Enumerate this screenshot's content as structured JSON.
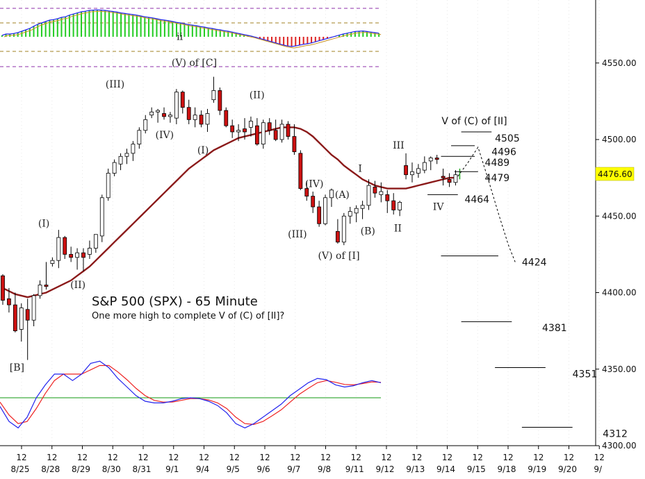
{
  "chart_data": {
    "type": "candlestick",
    "title": "S&P 500 (SPX) - 65 Minute",
    "subtitle": "One more high to complete V of (C) of [II]?",
    "last_price": "4476.60",
    "colors": {
      "up": "#ffffff",
      "down": "#cc1111",
      "ma": "#8b1a1a",
      "last_price_bg": "#ffff00",
      "macd": "#2222ee",
      "signal": "#ee2222",
      "zero": "#119911",
      "hist_up": "#22cc22",
      "hist_down": "#dd2222",
      "guide": "#8e2fa8"
    },
    "y_axis": {
      "min": 4300,
      "max": 4580,
      "ticks": [
        "4300.00",
        "4350.00",
        "4400.00",
        "4450.00",
        "4500.00",
        "4550.00"
      ]
    },
    "x_axis": {
      "sessions": [
        "8/25",
        "8/28",
        "8/29",
        "8/30",
        "8/31",
        "9/1",
        "9/4",
        "9/5",
        "9/6",
        "9/7",
        "9/8",
        "9/11",
        "9/12",
        "9/13",
        "9/14",
        "9/15",
        "9/18",
        "9/19",
        "9/20",
        "9/"
      ],
      "midday_label": "12"
    },
    "candles": [
      [
        4411,
        4412,
        4392,
        4395
      ],
      [
        4396,
        4403,
        4387,
        4392
      ],
      [
        4392,
        4400,
        4374,
        4375
      ],
      [
        4376,
        4393,
        4368,
        4390
      ],
      [
        4389,
        4396,
        4356,
        4382
      ],
      [
        4382,
        4399,
        4378,
        4398
      ],
      [
        4398,
        4408,
        4396,
        4405
      ],
      [
        4405,
        4420,
        4402,
        4404
      ],
      [
        4419,
        4423,
        4417,
        4421
      ],
      [
        4421,
        4441,
        4416,
        4436
      ],
      [
        4436,
        4437,
        4422,
        4425
      ],
      [
        4425,
        4430,
        4420,
        4423
      ],
      [
        4423,
        4429,
        4415,
        4426
      ],
      [
        4426,
        4429,
        4414,
        4423
      ],
      [
        4425,
        4434,
        4422,
        4429
      ],
      [
        4429,
        4438,
        4426,
        4438
      ],
      [
        4437,
        4464,
        4433,
        4462
      ],
      [
        4462,
        4481,
        4460,
        4478
      ],
      [
        4478,
        4487,
        4476,
        4485
      ],
      [
        4484,
        4491,
        4480,
        4489
      ],
      [
        4489,
        4494,
        4484,
        4491
      ],
      [
        4491,
        4499,
        4486,
        4497
      ],
      [
        4497,
        4508,
        4494,
        4506
      ],
      [
        4506,
        4516,
        4504,
        4513
      ],
      [
        4516,
        4521,
        4514,
        4518
      ],
      [
        4518,
        4520,
        4511,
        4519
      ],
      [
        4517,
        4521,
        4513,
        4515
      ],
      [
        4515,
        4518,
        4511,
        4516
      ],
      [
        4514,
        4533,
        4510,
        4531
      ],
      [
        4531,
        4532,
        4517,
        4521
      ],
      [
        4521,
        4526,
        4510,
        4513
      ],
      [
        4513,
        4521,
        4508,
        4516
      ],
      [
        4516,
        4519,
        4508,
        4510
      ],
      [
        4510,
        4520,
        4505,
        4517
      ],
      [
        4526,
        4541,
        4524,
        4532
      ],
      [
        4532,
        4534,
        4516,
        4519
      ],
      [
        4519,
        4521,
        4508,
        4509
      ],
      [
        4509,
        4513,
        4501,
        4505
      ],
      [
        4505,
        4510,
        4499,
        4506
      ],
      [
        4507,
        4514,
        4500,
        4505
      ],
      [
        4508,
        4515,
        4502,
        4512
      ],
      [
        4509,
        4514,
        4496,
        4497
      ],
      [
        4497,
        4513,
        4494,
        4511
      ],
      [
        4511,
        4514,
        4503,
        4506
      ],
      [
        4506,
        4513,
        4499,
        4500
      ],
      [
        4500,
        4513,
        4498,
        4510
      ],
      [
        4510,
        4512,
        4500,
        4502
      ],
      [
        4502,
        4510,
        4490,
        4492
      ],
      [
        4491,
        4493,
        4467,
        4468
      ],
      [
        4468,
        4473,
        4460,
        4463
      ],
      [
        4463,
        4466,
        4452,
        4456
      ],
      [
        4456,
        4460,
        4443,
        4445
      ],
      [
        4445,
        4464,
        4444,
        4462
      ],
      [
        4462,
        4468,
        4456,
        4467
      ],
      [
        4440,
        4448,
        4432,
        4433
      ],
      [
        4433,
        4452,
        4431,
        4450
      ],
      [
        4450,
        4456,
        4445,
        4453
      ],
      [
        4452,
        4457,
        4446,
        4455
      ],
      [
        4455,
        4460,
        4448,
        4457
      ],
      [
        4457,
        4474,
        4454,
        4470
      ],
      [
        4469,
        4473,
        4462,
        4465
      ],
      [
        4464,
        4472,
        4459,
        4466
      ],
      [
        4464,
        4467,
        4452,
        4460
      ],
      [
        4460,
        4465,
        4451,
        4454
      ],
      [
        4454,
        4460,
        4450,
        4459
      ],
      [
        4483,
        4491,
        4474,
        4477
      ],
      [
        4477,
        4485,
        4472,
        4479
      ],
      [
        4478,
        4484,
        4475,
        4481
      ],
      [
        4480,
        4489,
        4478,
        4485
      ],
      [
        4486,
        4489,
        4480,
        4488
      ],
      [
        4488,
        4490,
        4484,
        4487
      ],
      [
        4476,
        4481,
        4470,
        4475
      ],
      [
        4474,
        4478,
        4469,
        4472
      ],
      [
        4472,
        4480,
        4470,
        4477
      ]
    ],
    "moving_average": [
      4403,
      4401,
      4399,
      4398,
      4397,
      4398,
      4399,
      4400,
      4402,
      4404,
      4406,
      4408,
      4411,
      4414,
      4417,
      4421,
      4425,
      4429,
      4433,
      4437,
      4441,
      4445,
      4449,
      4453,
      4457,
      4461,
      4465,
      4469,
      4473,
      4477,
      4481,
      4484,
      4487,
      4490,
      4493,
      4495,
      4497,
      4499,
      4501,
      4502,
      4503,
      4504,
      4505,
      4506,
      4507,
      4508,
      4508,
      4508,
      4507,
      4505,
      4502,
      4498,
      4494,
      4490,
      4487,
      4483,
      4480,
      4477,
      4474,
      4472,
      4470,
      4469,
      4468,
      4468,
      4468,
      4468,
      4469,
      4470,
      4471,
      4472,
      4473,
      4474,
      4475,
      4475
    ],
    "wave_labels": [
      {
        "text": "[B]",
        "i": 4.2,
        "v": 4349
      },
      {
        "text": "(I)",
        "i": 12.2,
        "v": 4443
      },
      {
        "text": "(II)",
        "i": 22.3,
        "v": 4403
      },
      {
        "text": "(III)",
        "i": 33.3,
        "v": 4534
      },
      {
        "text": "(IV)",
        "i": 48,
        "v": 4501
      },
      {
        "text": "ii",
        "i": 52.5,
        "v": 4565
      },
      {
        "text": "(V) of [C]",
        "i": 56.8,
        "v": 4548
      },
      {
        "text": "(I)",
        "i": 59.4,
        "v": 4491
      },
      {
        "text": "(II)",
        "i": 75.4,
        "v": 4527
      },
      {
        "text": "(III)",
        "i": 87.4,
        "v": 4436
      },
      {
        "text": "(IV)",
        "i": 92.4,
        "v": 4469
      },
      {
        "text": "(V) of [I]",
        "i": 99.7,
        "v": 4422
      },
      {
        "text": "(A)",
        "i": 100.7,
        "v": 4462
      },
      {
        "text": "(B)",
        "i": 108.3,
        "v": 4438
      },
      {
        "text": "I",
        "i": 106,
        "v": 4479
      },
      {
        "text": "II",
        "i": 117.2,
        "v": 4440
      },
      {
        "text": "III",
        "i": 117.4,
        "v": 4494
      },
      {
        "text": "IV",
        "i": 129.2,
        "v": 4454
      }
    ],
    "targets": [
      {
        "label": "V of (C) of [II]",
        "kind": "title",
        "i": 139.9,
        "v": 4510
      },
      {
        "label": "4505",
        "i0": 136,
        "i1": 145,
        "v": 4505,
        "ti": 146,
        "tv": 4501
      },
      {
        "label": "4496",
        "i0": 133,
        "i1": 140,
        "v": 4496,
        "ti": 145,
        "tv": 4492
      },
      {
        "label": "4489",
        "i0": 130,
        "i1": 140,
        "v": 4489,
        "ti": 143,
        "tv": 4485
      },
      {
        "label": "4479",
        "i0": 134,
        "i1": 141,
        "v": 4479,
        "ti": 143,
        "tv": 4475
      },
      {
        "label": "4464",
        "i0": 126,
        "i1": 135,
        "v": 4464,
        "ti": 137,
        "tv": 4461
      },
      {
        "label": "4424",
        "i0": 130,
        "i1": 147,
        "v": 4424,
        "ti": 154,
        "tv": 4420
      },
      {
        "label": "4381",
        "i0": 136,
        "i1": 151,
        "v": 4381,
        "ti": 160,
        "tv": 4377
      },
      {
        "label": "4351",
        "i0": 146,
        "i1": 161,
        "v": 4351,
        "ti": 169,
        "tv": 4347
      },
      {
        "label": "4312",
        "i0": 154,
        "i1": 169,
        "v": 4312,
        "ti": 178,
        "tv": 4308
      }
    ],
    "projection": [
      [
        135,
        4476
      ],
      [
        138,
        4485
      ],
      [
        141,
        4495
      ],
      [
        144,
        4474
      ],
      [
        147,
        4452
      ],
      [
        150,
        4431
      ],
      [
        152,
        4420
      ]
    ],
    "histogram": [
      0.05,
      0.1,
      0.1,
      0.12,
      0.15,
      0.2,
      0.25,
      0.3,
      0.38,
      0.45,
      0.5,
      0.55,
      0.6,
      0.62,
      0.65,
      0.7,
      0.72,
      0.78,
      0.82,
      0.86,
      0.9,
      0.92,
      0.95,
      0.96,
      0.97,
      0.96,
      0.95,
      0.93,
      0.91,
      0.89,
      0.86,
      0.84,
      0.82,
      0.8,
      0.78,
      0.75,
      0.72,
      0.7,
      0.68,
      0.65,
      0.62,
      0.6,
      0.58,
      0.55,
      0.52,
      0.5,
      0.47,
      0.44,
      0.42,
      0.4,
      0.37,
      0.35,
      0.32,
      0.3,
      0.27,
      0.25,
      0.22,
      0.2,
      0.17,
      0.14,
      0.11,
      0.08,
      0.05,
      0.02,
      -0.02,
      -0.06,
      -0.1,
      -0.14,
      -0.18,
      -0.22,
      -0.26,
      -0.3,
      -0.33,
      -0.35,
      -0.33,
      -0.3,
      -0.27,
      -0.25,
      -0.22,
      -0.18,
      -0.14,
      -0.1,
      -0.06,
      -0.02,
      0.02,
      0.06,
      0.1,
      0.13,
      0.16,
      0.19,
      0.2,
      0.21,
      0.19,
      0.17,
      0.15,
      0.13
    ],
    "macd": [
      -0.2,
      -0.55,
      -0.7,
      -0.45,
      0.0,
      0.3,
      0.55,
      0.55,
      0.4,
      0.55,
      0.8,
      0.85,
      0.7,
      0.45,
      0.25,
      0.05,
      -0.08,
      -0.12,
      -0.12,
      -0.08,
      -0.02,
      0.0,
      -0.02,
      -0.08,
      -0.18,
      -0.35,
      -0.6,
      -0.7,
      -0.6,
      -0.45,
      -0.3,
      -0.15,
      0.05,
      0.2,
      0.35,
      0.45,
      0.42,
      0.3,
      0.25,
      0.28,
      0.35,
      0.4,
      0.35
    ],
    "signal": [
      -0.1,
      -0.4,
      -0.6,
      -0.55,
      -0.25,
      0.1,
      0.4,
      0.55,
      0.55,
      0.55,
      0.65,
      0.75,
      0.75,
      0.6,
      0.42,
      0.22,
      0.05,
      -0.06,
      -0.1,
      -0.1,
      -0.06,
      -0.02,
      -0.02,
      -0.05,
      -0.12,
      -0.25,
      -0.45,
      -0.6,
      -0.62,
      -0.55,
      -0.42,
      -0.28,
      -0.1,
      0.08,
      0.22,
      0.35,
      0.4,
      0.36,
      0.31,
      0.3,
      0.33,
      0.37,
      0.36
    ]
  }
}
